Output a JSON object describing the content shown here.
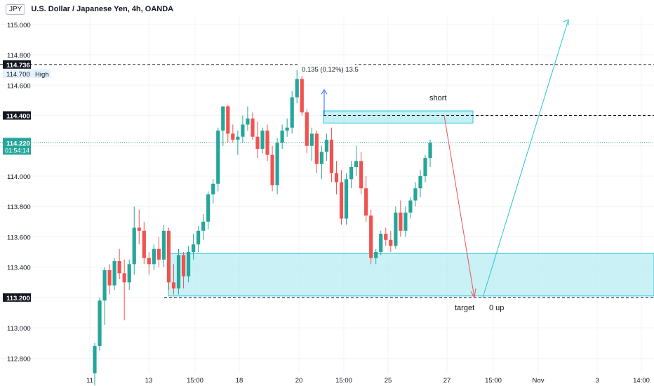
{
  "header": {
    "symbol_badge": "JPY",
    "title": "U.S. Dollar / Japanese Yen, 4h, OANDA"
  },
  "colors": {
    "up": "#26a69a",
    "down": "#ef5350",
    "zone_fill": "#b2ebf2",
    "zone_border": "#26c6da",
    "projection_down": "#ef5350",
    "projection_up": "#26c6da",
    "measure": "#2962ff"
  },
  "chart_data": {
    "type": "candlestick",
    "ylim": [
      112.7,
      115.05
    ],
    "y_ticks": [
      "115.000",
      "114.800",
      "114.600",
      "114.400",
      "114.200",
      "114.000",
      "113.800",
      "113.600",
      "113.400",
      "113.200",
      "113.000",
      "112.800"
    ],
    "x_ticks": [
      "11",
      "13",
      "15:00",
      "18",
      "20",
      "15:00",
      "25",
      "27",
      "15:00",
      "Nov",
      "3",
      "14:00"
    ],
    "price_labels": {
      "high_value": "114.736",
      "high_text": "High",
      "high_sub": "114.700",
      "level_1": "114.400",
      "current": "114.220",
      "countdown": "01:54:14",
      "level_2": "113.200"
    },
    "candles": [
      [
        112.7,
        112.9,
        112.62,
        112.88
      ],
      [
        112.88,
        113.2,
        112.85,
        113.18
      ],
      [
        113.18,
        113.4,
        113.02,
        113.38
      ],
      [
        113.38,
        113.42,
        113.22,
        113.28
      ],
      [
        113.28,
        113.46,
        113.25,
        113.44
      ],
      [
        113.44,
        113.52,
        113.32,
        113.36
      ],
      [
        113.36,
        113.45,
        113.05,
        113.3
      ],
      [
        113.3,
        113.45,
        113.25,
        113.42
      ],
      [
        113.42,
        113.8,
        113.35,
        113.66
      ],
      [
        113.66,
        113.78,
        113.55,
        113.64
      ],
      [
        113.64,
        113.7,
        113.42,
        113.46
      ],
      [
        113.46,
        113.5,
        113.35,
        113.42
      ],
      [
        113.42,
        113.55,
        113.38,
        113.52
      ],
      [
        113.52,
        113.6,
        113.4,
        113.45
      ],
      [
        113.45,
        113.68,
        113.4,
        113.64
      ],
      [
        113.64,
        113.66,
        113.25,
        113.3
      ],
      [
        113.3,
        113.42,
        113.22,
        113.26
      ],
      [
        113.26,
        113.52,
        113.22,
        113.48
      ],
      [
        113.48,
        113.5,
        113.26,
        113.34
      ],
      [
        113.34,
        113.54,
        113.3,
        113.5
      ],
      [
        113.5,
        113.62,
        113.45,
        113.55
      ],
      [
        113.55,
        113.67,
        113.5,
        113.64
      ],
      [
        113.64,
        113.75,
        113.58,
        113.7
      ],
      [
        113.7,
        113.9,
        113.65,
        113.88
      ],
      [
        113.88,
        113.98,
        113.82,
        113.95
      ],
      [
        113.95,
        114.32,
        113.9,
        114.3
      ],
      [
        114.3,
        114.46,
        114.2,
        114.46
      ],
      [
        114.46,
        114.47,
        114.22,
        114.28
      ],
      [
        114.28,
        114.34,
        114.22,
        114.24
      ],
      [
        114.24,
        114.3,
        114.14,
        114.26
      ],
      [
        114.26,
        114.4,
        114.22,
        114.34
      ],
      [
        114.34,
        114.46,
        114.3,
        114.38
      ],
      [
        114.38,
        114.42,
        114.24,
        114.26
      ],
      [
        114.26,
        114.36,
        114.12,
        114.18
      ],
      [
        114.18,
        114.32,
        114.15,
        114.3
      ],
      [
        114.3,
        114.34,
        114.1,
        114.14
      ],
      [
        114.14,
        114.2,
        113.9,
        113.94
      ],
      [
        113.94,
        114.25,
        113.88,
        114.22
      ],
      [
        114.22,
        114.34,
        114.18,
        114.3
      ],
      [
        114.3,
        114.38,
        114.26,
        114.32
      ],
      [
        114.32,
        114.56,
        114.28,
        114.52
      ],
      [
        114.52,
        114.7,
        114.48,
        114.64
      ],
      [
        114.64,
        114.66,
        114.4,
        114.42
      ],
      [
        114.42,
        114.44,
        114.15,
        114.2
      ],
      [
        114.2,
        114.32,
        114.1,
        114.28
      ],
      [
        114.28,
        114.3,
        114.02,
        114.08
      ],
      [
        114.08,
        114.2,
        113.98,
        114.16
      ],
      [
        114.16,
        114.28,
        114.1,
        114.24
      ],
      [
        114.24,
        114.32,
        113.96,
        114.02
      ],
      [
        114.02,
        114.1,
        113.88,
        113.96
      ],
      [
        113.96,
        114.04,
        113.68,
        113.72
      ],
      [
        113.72,
        114.02,
        113.68,
        113.98
      ],
      [
        113.98,
        114.1,
        113.92,
        114.06
      ],
      [
        114.06,
        114.2,
        114.0,
        114.1
      ],
      [
        114.1,
        114.16,
        113.88,
        113.92
      ],
      [
        113.92,
        114.0,
        113.7,
        113.74
      ],
      [
        113.74,
        113.78,
        113.42,
        113.46
      ],
      [
        113.46,
        113.52,
        113.42,
        113.5
      ],
      [
        113.5,
        113.64,
        113.48,
        113.62
      ],
      [
        113.62,
        113.66,
        113.54,
        113.58
      ],
      [
        113.58,
        113.64,
        113.5,
        113.54
      ],
      [
        113.54,
        113.8,
        113.52,
        113.76
      ],
      [
        113.76,
        113.84,
        113.6,
        113.64
      ],
      [
        113.64,
        113.8,
        113.6,
        113.76
      ],
      [
        113.76,
        113.86,
        113.72,
        113.84
      ],
      [
        113.84,
        113.96,
        113.8,
        113.92
      ],
      [
        113.92,
        114.04,
        113.86,
        114.0
      ],
      [
        114.0,
        114.14,
        113.96,
        114.12
      ],
      [
        114.12,
        114.24,
        114.06,
        114.22
      ]
    ],
    "annotations": {
      "measure_label": "0.135 (0.12%) 13.5",
      "short_label": "short",
      "target_label": "target",
      "up_label": "0 up",
      "short_zone": [
        114.35,
        114.43
      ],
      "demand_zone": [
        113.21,
        113.49
      ],
      "high_line": 114.736,
      "level_line": 114.4,
      "current_line": 114.22,
      "target_line": 113.2
    }
  }
}
